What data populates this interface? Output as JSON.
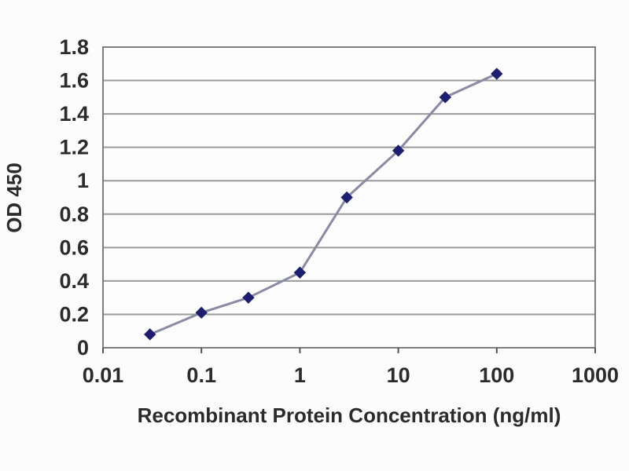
{
  "page": {
    "background": "#fcfcfc"
  },
  "chart_data": {
    "type": "line",
    "title": "",
    "xlabel": "Recombinant Protein Concentration (ng/ml)",
    "ylabel": "OD 450",
    "x_scale": "log",
    "xlim": [
      0.01,
      1000
    ],
    "ylim": [
      0,
      1.8
    ],
    "x_ticks": [
      "0.01",
      "0.1",
      "1",
      "10",
      "100",
      "1000"
    ],
    "y_ticks": [
      "0",
      "0.2",
      "0.4",
      "0.6",
      "0.8",
      "1",
      "1.2",
      "1.4",
      "1.6",
      "1.8"
    ],
    "grid": "horizontal",
    "legend": "none",
    "series": [
      {
        "x": [
          0.03,
          0.1,
          0.3,
          1,
          3,
          10,
          30,
          100
        ],
        "y": [
          0.08,
          0.21,
          0.3,
          0.45,
          0.9,
          1.18,
          1.5,
          1.64
        ],
        "marker": "diamond",
        "marker_color": "#1f1f72",
        "line_color": "#8a8aa5"
      }
    ],
    "colors": {
      "gridline": "#9a9a9a",
      "axis_border": "#7d7d7d",
      "tick_mark": "#555555",
      "tick_text": "#2b2b2b",
      "plot_background": "#fdfdfd"
    }
  }
}
